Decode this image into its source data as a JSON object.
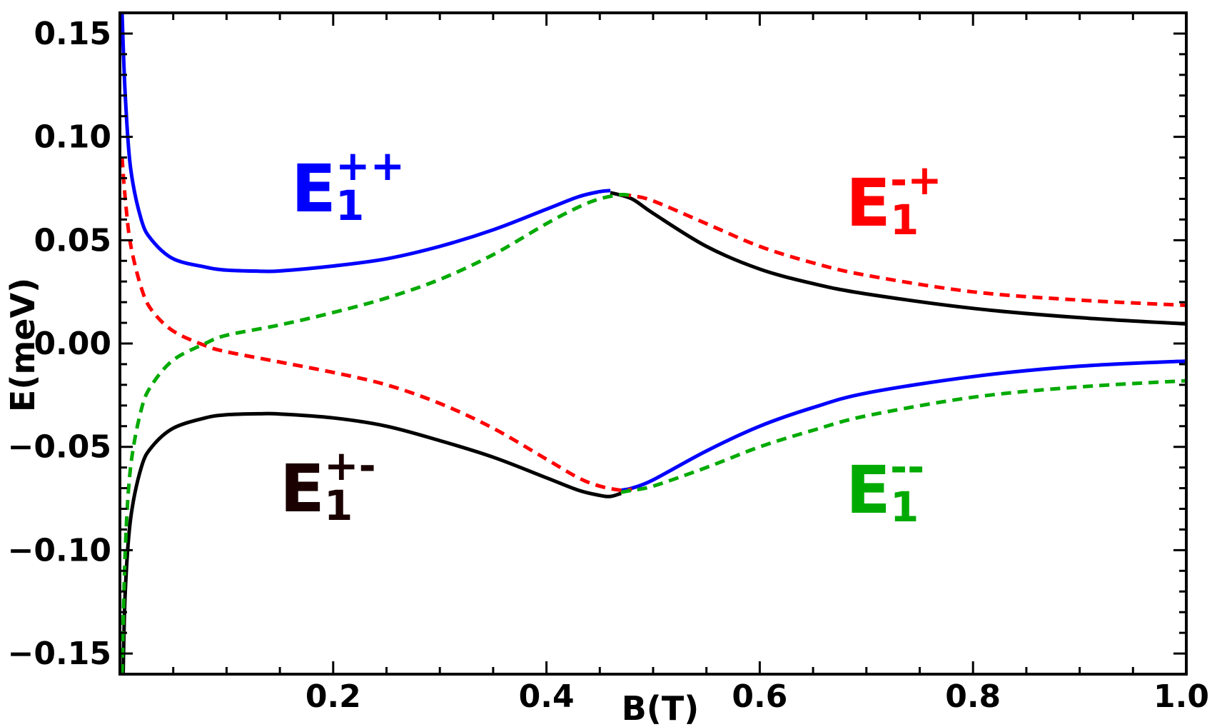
{
  "chart_data": {
    "type": "line",
    "xlabel": "B(T)",
    "ylabel": "E(meV)",
    "xlim": [
      0.0,
      1.0
    ],
    "ylim": [
      -0.16,
      0.16
    ],
    "x_ticks": [
      0.2,
      0.4,
      0.6,
      0.8,
      1.0
    ],
    "x_tick_labels": [
      "0.2",
      "0.4",
      "0.6",
      "0.8",
      "1.0"
    ],
    "y_ticks": [
      0.15,
      0.1,
      0.05,
      0.0,
      -0.05,
      -0.1,
      -0.15
    ],
    "y_tick_labels": [
      "0.15",
      "0.10",
      "0.05",
      "0.00",
      "−0.05",
      "−0.10",
      "−0.15"
    ],
    "grid": false,
    "legend": "none",
    "annotations": [
      {
        "base": "E",
        "sub": "1",
        "sup": "++",
        "color": "#0000ff",
        "near": "upper-left"
      },
      {
        "base": "E",
        "sub": "1",
        "sup": "-+",
        "color": "#ff0000",
        "near": "upper-right"
      },
      {
        "base": "E",
        "sub": "1",
        "sup": "+-",
        "color": "#1a0000",
        "near": "lower-left"
      },
      {
        "base": "E",
        "sub": "1",
        "sup": "--",
        "color": "#00aa00",
        "near": "lower-right"
      }
    ],
    "series": [
      {
        "color": "#0000ff",
        "style": "solid",
        "x": [
          0.002,
          0.005,
          0.01,
          0.02,
          0.03,
          0.05,
          0.08,
          0.1,
          0.13,
          0.15,
          0.2,
          0.25,
          0.3,
          0.35,
          0.4,
          0.43,
          0.45,
          0.46
        ],
        "y": [
          0.16,
          0.12,
          0.085,
          0.06,
          0.05,
          0.041,
          0.037,
          0.0355,
          0.035,
          0.0351,
          0.0375,
          0.041,
          0.047,
          0.055,
          0.065,
          0.071,
          0.0735,
          0.074
        ]
      },
      {
        "color": "#0000ff",
        "style": "solid",
        "x": [
          0.47,
          0.48,
          0.5,
          0.55,
          0.6,
          0.65,
          0.7,
          0.8,
          0.9,
          1.0
        ],
        "y": [
          -0.071,
          -0.07,
          -0.066,
          -0.052,
          -0.04,
          -0.031,
          -0.024,
          -0.016,
          -0.011,
          -0.0085
        ]
      },
      {
        "color": "#000000",
        "style": "solid",
        "x": [
          0.003,
          0.005,
          0.01,
          0.02,
          0.03,
          0.05,
          0.08,
          0.1,
          0.13,
          0.15,
          0.2,
          0.25,
          0.3,
          0.35,
          0.4,
          0.43,
          0.45,
          0.46,
          0.47
        ],
        "y": [
          -0.16,
          -0.12,
          -0.085,
          -0.06,
          -0.05,
          -0.041,
          -0.036,
          -0.0345,
          -0.034,
          -0.0341,
          -0.036,
          -0.04,
          -0.047,
          -0.055,
          -0.065,
          -0.071,
          -0.0735,
          -0.074,
          -0.0725
        ]
      },
      {
        "color": "#000000",
        "style": "solid",
        "x": [
          0.46,
          0.48,
          0.5,
          0.55,
          0.6,
          0.65,
          0.7,
          0.8,
          0.9,
          1.0
        ],
        "y": [
          0.073,
          0.07,
          0.063,
          0.047,
          0.036,
          0.029,
          0.024,
          0.017,
          0.0125,
          0.0095
        ]
      },
      {
        "color": "#ff0000",
        "style": "dashed",
        "x": [
          0.002,
          0.005,
          0.01,
          0.02,
          0.03,
          0.05,
          0.08,
          0.1,
          0.15,
          0.2,
          0.25,
          0.3,
          0.35,
          0.4,
          0.43,
          0.45,
          0.47,
          0.48
        ],
        "y": [
          0.09,
          0.07,
          0.048,
          0.027,
          0.016,
          0.006,
          -0.001,
          -0.004,
          -0.009,
          -0.014,
          -0.02,
          -0.029,
          -0.041,
          -0.056,
          -0.065,
          -0.069,
          -0.071,
          -0.0705
        ]
      },
      {
        "color": "#ff0000",
        "style": "dashed",
        "x": [
          0.47,
          0.48,
          0.5,
          0.55,
          0.6,
          0.65,
          0.7,
          0.8,
          0.9,
          1.0
        ],
        "y": [
          0.072,
          0.0715,
          0.069,
          0.058,
          0.047,
          0.039,
          0.033,
          0.025,
          0.021,
          0.0185
        ]
      },
      {
        "color": "#00aa00",
        "style": "dashed",
        "x": [
          0.002,
          0.005,
          0.01,
          0.02,
          0.03,
          0.05,
          0.08,
          0.1,
          0.15,
          0.2,
          0.25,
          0.3,
          0.35,
          0.4,
          0.43,
          0.45,
          0.47,
          0.48
        ],
        "y": [
          -0.16,
          -0.1,
          -0.06,
          -0.032,
          -0.02,
          -0.008,
          0.0,
          0.004,
          0.009,
          0.015,
          0.022,
          0.031,
          0.043,
          0.058,
          0.066,
          0.07,
          0.072,
          0.0715
        ]
      },
      {
        "color": "#00aa00",
        "style": "dashed",
        "x": [
          0.47,
          0.48,
          0.5,
          0.55,
          0.6,
          0.65,
          0.7,
          0.8,
          0.9,
          1.0
        ],
        "y": [
          -0.072,
          -0.071,
          -0.069,
          -0.06,
          -0.05,
          -0.042,
          -0.035,
          -0.026,
          -0.021,
          -0.018
        ]
      }
    ]
  }
}
